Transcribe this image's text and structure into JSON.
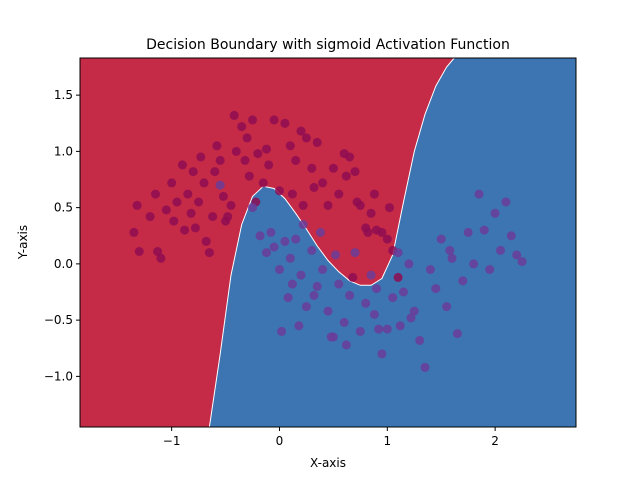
{
  "chart_data": {
    "type": "scatter",
    "title": "Decision Boundary with sigmoid Activation Function",
    "xlabel": "X-axis",
    "ylabel": "Y-axis",
    "xlim": [
      -1.85,
      2.75
    ],
    "ylim": [
      -1.45,
      1.83
    ],
    "xticks": [
      -1,
      0,
      1,
      2
    ],
    "xtick_labels": [
      "−1",
      "0",
      "1",
      "2"
    ],
    "yticks": [
      -1.0,
      -0.5,
      0.0,
      0.5,
      1.0,
      1.5
    ],
    "ytick_labels": [
      "−1.0",
      "−0.5",
      "0.0",
      "0.5",
      "1.0",
      "1.5"
    ],
    "grid": false,
    "background_regions": [
      {
        "class": 0,
        "color": "#c52a46"
      },
      {
        "class": 1,
        "color": "#3d74b2"
      }
    ],
    "decision_boundary": {
      "x": [
        -0.65,
        -0.55,
        -0.45,
        -0.35,
        -0.25,
        -0.15,
        -0.05,
        0.05,
        0.15,
        0.25,
        0.35,
        0.45,
        0.55,
        0.65,
        0.75,
        0.85,
        0.95,
        1.05,
        1.15,
        1.25,
        1.35,
        1.45,
        1.55,
        1.62
      ],
      "y": [
        -1.45,
        -0.8,
        -0.1,
        0.35,
        0.6,
        0.69,
        0.67,
        0.58,
        0.45,
        0.31,
        0.16,
        0.03,
        -0.07,
        -0.15,
        -0.19,
        -0.19,
        -0.13,
        0.08,
        0.55,
        1.0,
        1.33,
        1.58,
        1.75,
        1.83
      ]
    },
    "series": [
      {
        "class": 0,
        "color": "#8e0d52",
        "x": [
          -1.35,
          -1.32,
          -1.3,
          -1.2,
          -1.15,
          -1.13,
          -1.1,
          -1.05,
          -1.0,
          -0.98,
          -0.95,
          -0.9,
          -0.88,
          -0.85,
          -0.82,
          -0.8,
          -0.78,
          -0.75,
          -0.73,
          -0.7,
          -0.68,
          -0.65,
          -0.62,
          -0.6,
          -0.58,
          -0.55,
          -0.52,
          -0.5,
          -0.48,
          -0.45,
          -0.42,
          -0.4,
          -0.35,
          -0.32,
          -0.3,
          -0.28,
          -0.25,
          -0.22,
          -0.2,
          -0.15,
          -0.12,
          -0.1,
          -0.05,
          0.0,
          0.05,
          0.1,
          0.12,
          0.15,
          0.2,
          0.22,
          0.25,
          0.3,
          0.32,
          0.35,
          0.4,
          0.45,
          0.5,
          0.55,
          0.6,
          0.62,
          0.65,
          0.7,
          0.72,
          0.75,
          0.8,
          0.82,
          0.85,
          0.88,
          0.9,
          0.95,
          1.0,
          1.02,
          1.05,
          1.1,
          0.68
        ],
        "y": [
          0.28,
          0.52,
          0.11,
          0.42,
          0.62,
          0.11,
          0.05,
          0.48,
          0.72,
          0.38,
          0.55,
          0.88,
          0.3,
          0.62,
          0.45,
          0.82,
          0.32,
          0.55,
          0.95,
          0.72,
          0.2,
          0.1,
          0.42,
          0.82,
          1.05,
          0.92,
          0.6,
          0.38,
          0.42,
          0.52,
          1.32,
          1.0,
          1.22,
          0.92,
          1.12,
          0.78,
          1.28,
          0.55,
          0.98,
          0.72,
          1.02,
          0.88,
          1.28,
          0.65,
          1.25,
          1.05,
          0.62,
          0.92,
          1.18,
          0.52,
          1.12,
          0.85,
          0.68,
          1.08,
          0.72,
          0.52,
          0.85,
          0.62,
          0.98,
          0.78,
          0.95,
          0.82,
          0.55,
          0.52,
          0.32,
          0.28,
          0.45,
          0.62,
          0.3,
          0.28,
          0.22,
          0.5,
          0.12,
          -0.12,
          -0.12
        ]
      },
      {
        "class": 1,
        "color": "#6a3d9a",
        "x": [
          -0.55,
          -0.25,
          -0.18,
          -0.12,
          -0.08,
          -0.05,
          0.0,
          0.05,
          0.08,
          0.1,
          0.12,
          0.15,
          0.2,
          0.22,
          0.25,
          0.3,
          0.35,
          0.38,
          0.4,
          0.45,
          0.5,
          0.52,
          0.55,
          0.6,
          0.62,
          0.65,
          0.7,
          0.75,
          0.8,
          0.85,
          0.88,
          0.9,
          0.95,
          1.0,
          1.05,
          1.1,
          1.12,
          1.15,
          1.2,
          1.25,
          1.3,
          1.35,
          1.4,
          1.45,
          1.5,
          1.55,
          1.6,
          1.65,
          1.7,
          1.75,
          1.8,
          1.85,
          1.9,
          1.95,
          2.0,
          2.05,
          2.1,
          2.15,
          2.2,
          2.25,
          0.02,
          0.18,
          0.32,
          0.48,
          0.92,
          1.22,
          1.58
        ],
        "y": [
          0.7,
          0.5,
          0.25,
          0.1,
          0.28,
          0.15,
          -0.05,
          0.2,
          -0.3,
          0.05,
          -0.18,
          0.22,
          -0.1,
          0.35,
          -0.38,
          0.12,
          -0.2,
          0.28,
          -0.05,
          -0.42,
          -0.65,
          0.08,
          -0.18,
          -0.52,
          -0.72,
          -0.28,
          0.1,
          -0.6,
          -0.35,
          -0.1,
          -0.45,
          -0.22,
          -0.8,
          -0.58,
          -0.3,
          0.1,
          -0.55,
          -0.25,
          0.0,
          -0.42,
          -0.68,
          -0.92,
          -0.05,
          -0.22,
          0.22,
          -0.38,
          0.05,
          -0.62,
          -0.15,
          0.28,
          0.0,
          0.62,
          0.3,
          -0.05,
          0.45,
          0.12,
          0.55,
          0.25,
          0.08,
          0.02,
          -0.6,
          -0.55,
          -0.28,
          -0.65,
          -0.58,
          -0.48,
          0.12
        ]
      }
    ]
  }
}
